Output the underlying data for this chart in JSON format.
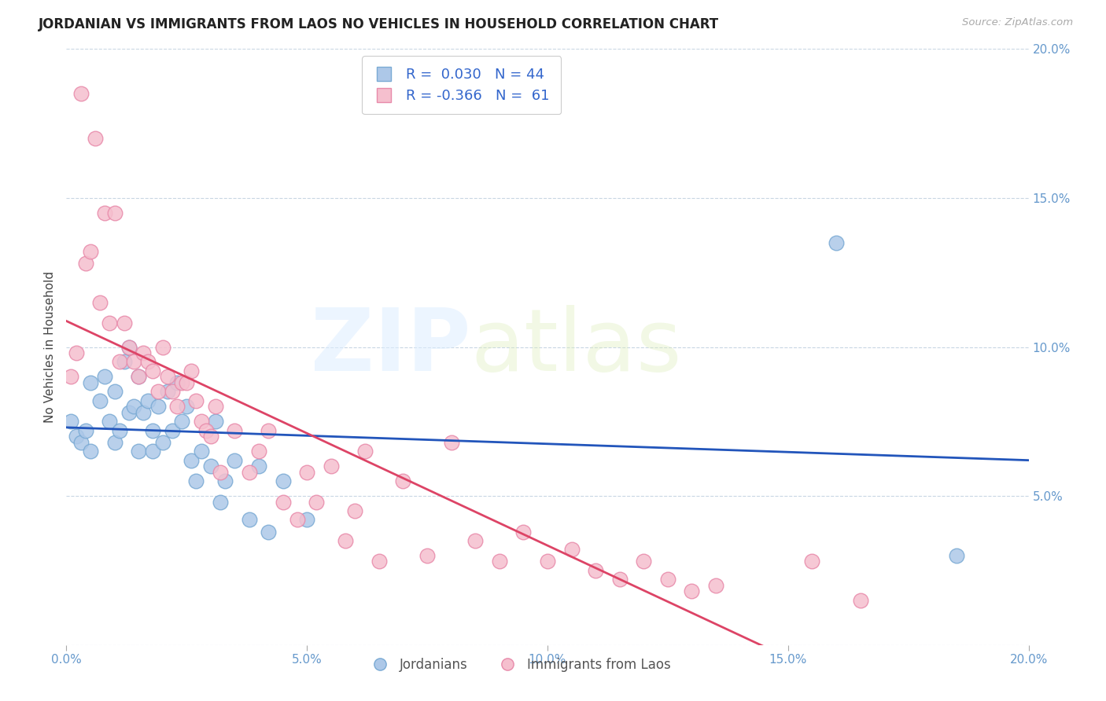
{
  "title": "JORDANIAN VS IMMIGRANTS FROM LAOS NO VEHICLES IN HOUSEHOLD CORRELATION CHART",
  "source": "Source: ZipAtlas.com",
  "ylabel": "No Vehicles in Household",
  "xlim": [
    0.0,
    0.2
  ],
  "ylim": [
    0.0,
    0.2
  ],
  "xticks": [
    0.0,
    0.05,
    0.1,
    0.15,
    0.2
  ],
  "yticks": [
    0.0,
    0.05,
    0.1,
    0.15,
    0.2
  ],
  "xticklabels": [
    "0.0%",
    "5.0%",
    "10.0%",
    "15.0%",
    "20.0%"
  ],
  "right_yticklabels": [
    "",
    "5.0%",
    "10.0%",
    "15.0%",
    "20.0%"
  ],
  "jordanian_color": "#adc8e8",
  "jordanian_edge": "#7aaad4",
  "laos_color": "#f5bfce",
  "laos_edge": "#e88aaa",
  "trend_jordan_color": "#2255bb",
  "trend_laos_color": "#dd4466",
  "R_jordan": 0.03,
  "N_jordan": 44,
  "R_laos": -0.366,
  "N_laos": 61,
  "tick_color": "#6699cc",
  "legend_text_color": "#3366cc",
  "jordanian_x": [
    0.001,
    0.002,
    0.003,
    0.004,
    0.005,
    0.005,
    0.007,
    0.008,
    0.009,
    0.01,
    0.01,
    0.011,
    0.012,
    0.013,
    0.013,
    0.014,
    0.015,
    0.015,
    0.016,
    0.017,
    0.018,
    0.018,
    0.019,
    0.02,
    0.021,
    0.022,
    0.023,
    0.024,
    0.025,
    0.026,
    0.027,
    0.028,
    0.03,
    0.031,
    0.032,
    0.033,
    0.035,
    0.038,
    0.04,
    0.042,
    0.045,
    0.05,
    0.16,
    0.185
  ],
  "jordanian_y": [
    0.075,
    0.07,
    0.068,
    0.072,
    0.088,
    0.065,
    0.082,
    0.09,
    0.075,
    0.085,
    0.068,
    0.072,
    0.095,
    0.1,
    0.078,
    0.08,
    0.09,
    0.065,
    0.078,
    0.082,
    0.072,
    0.065,
    0.08,
    0.068,
    0.085,
    0.072,
    0.088,
    0.075,
    0.08,
    0.062,
    0.055,
    0.065,
    0.06,
    0.075,
    0.048,
    0.055,
    0.062,
    0.042,
    0.06,
    0.038,
    0.055,
    0.042,
    0.135,
    0.03
  ],
  "laos_x": [
    0.001,
    0.002,
    0.003,
    0.004,
    0.005,
    0.006,
    0.007,
    0.008,
    0.009,
    0.01,
    0.011,
    0.012,
    0.013,
    0.014,
    0.015,
    0.016,
    0.017,
    0.018,
    0.019,
    0.02,
    0.021,
    0.022,
    0.023,
    0.024,
    0.025,
    0.026,
    0.027,
    0.028,
    0.029,
    0.03,
    0.031,
    0.032,
    0.035,
    0.038,
    0.04,
    0.042,
    0.045,
    0.048,
    0.05,
    0.052,
    0.055,
    0.058,
    0.06,
    0.062,
    0.065,
    0.07,
    0.075,
    0.08,
    0.085,
    0.09,
    0.095,
    0.1,
    0.105,
    0.11,
    0.115,
    0.12,
    0.125,
    0.13,
    0.135,
    0.155,
    0.165
  ],
  "laos_y": [
    0.09,
    0.098,
    0.185,
    0.128,
    0.132,
    0.17,
    0.115,
    0.145,
    0.108,
    0.145,
    0.095,
    0.108,
    0.1,
    0.095,
    0.09,
    0.098,
    0.095,
    0.092,
    0.085,
    0.1,
    0.09,
    0.085,
    0.08,
    0.088,
    0.088,
    0.092,
    0.082,
    0.075,
    0.072,
    0.07,
    0.08,
    0.058,
    0.072,
    0.058,
    0.065,
    0.072,
    0.048,
    0.042,
    0.058,
    0.048,
    0.06,
    0.035,
    0.045,
    0.065,
    0.028,
    0.055,
    0.03,
    0.068,
    0.035,
    0.028,
    0.038,
    0.028,
    0.032,
    0.025,
    0.022,
    0.028,
    0.022,
    0.018,
    0.02,
    0.028,
    0.015
  ]
}
